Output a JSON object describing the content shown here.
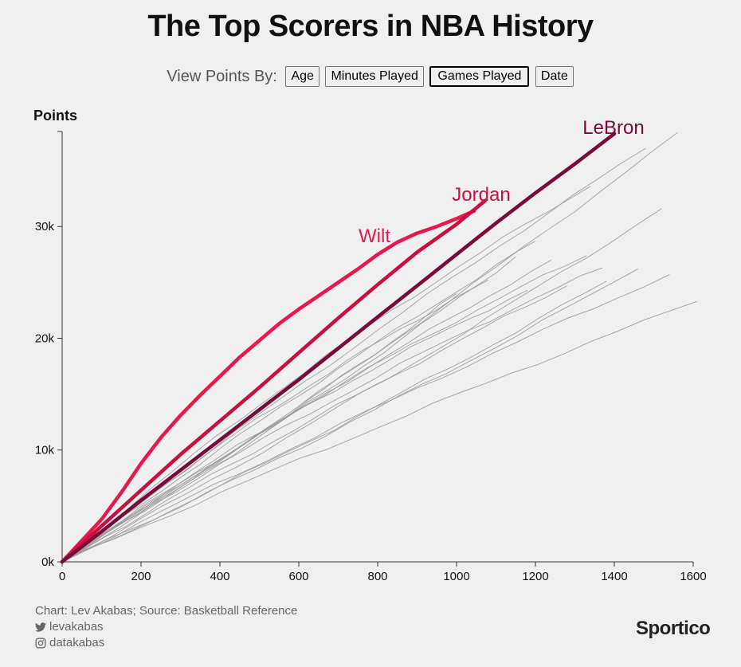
{
  "title": "The Top Scorers in NBA History",
  "controls": {
    "label": "View Points By:",
    "buttons": [
      "Age",
      "Minutes Played",
      "Games Played",
      "Date"
    ],
    "active": "Games Played"
  },
  "footer": {
    "credit": "Chart: Lev Akabas; Source: Basketball Reference",
    "twitter": "levakabas",
    "instagram": "datakabas",
    "twitter_icon": "twitter-icon",
    "instagram_icon": "instagram-icon"
  },
  "brand": "Sportico",
  "colors": {
    "background": "#f0f0f0",
    "lebron": "#7a0a3c",
    "jordan": "#c8103f",
    "wilt": "#e8174c",
    "others": "#9a9a9a"
  },
  "chart_data": {
    "type": "line",
    "ylabel": "Points",
    "xlabel": "",
    "xlim": [
      0,
      1600
    ],
    "ylim": [
      0,
      38500
    ],
    "xticks": [
      0,
      200,
      400,
      600,
      800,
      1000,
      1200,
      1400,
      1600
    ],
    "yticks": [
      0,
      10000,
      20000,
      30000
    ],
    "ytick_labels": [
      "0k",
      "10k",
      "20k",
      "30k"
    ],
    "series": [
      {
        "name": "LeBron",
        "highlight": true,
        "color": "#7a0a3c",
        "x": [
          0,
          100,
          200,
          300,
          400,
          500,
          600,
          700,
          800,
          900,
          1000,
          1100,
          1200,
          1300,
          1400
        ],
        "y": [
          0,
          2700,
          5500,
          8200,
          10900,
          13600,
          16300,
          19100,
          21900,
          24700,
          27500,
          30300,
          33000,
          35600,
          38300
        ]
      },
      {
        "name": "Jordan",
        "highlight": true,
        "color": "#c8103f",
        "x": [
          0,
          100,
          200,
          300,
          400,
          500,
          600,
          700,
          800,
          900,
          1000,
          1072
        ],
        "y": [
          0,
          3200,
          6400,
          9600,
          12600,
          15600,
          18700,
          21800,
          24800,
          27700,
          30200,
          32300
        ]
      },
      {
        "name": "Wilt",
        "highlight": true,
        "color": "#e8174c",
        "x": [
          0,
          100,
          150,
          200,
          250,
          300,
          350,
          400,
          450,
          500,
          550,
          600,
          650,
          700,
          750,
          800,
          850,
          900,
          950,
          1000,
          1045
        ],
        "y": [
          0,
          3800,
          6200,
          8800,
          11100,
          13100,
          14900,
          16600,
          18300,
          19800,
          21300,
          22600,
          23800,
          25000,
          26200,
          27500,
          28600,
          29400,
          30000,
          30700,
          31400
        ]
      },
      {
        "x": [
          0,
          1560
        ],
        "y": [
          0,
          38400
        ]
      },
      {
        "x": [
          0,
          1480
        ],
        "y": [
          0,
          37000
        ]
      },
      {
        "x": [
          0,
          1340
        ],
        "y": [
          0,
          33600
        ]
      },
      {
        "x": [
          0,
          1520
        ],
        "y": [
          0,
          31600
        ]
      },
      {
        "x": [
          0,
          1200
        ],
        "y": [
          0,
          28700
        ]
      },
      {
        "x": [
          0,
          1330
        ],
        "y": [
          0,
          27400
        ]
      },
      {
        "x": [
          0,
          1150
        ],
        "y": [
          0,
          27300
        ]
      },
      {
        "x": [
          0,
          1240
        ],
        "y": [
          0,
          27000
        ]
      },
      {
        "x": [
          0,
          1370
        ],
        "y": [
          0,
          26300
        ]
      },
      {
        "x": [
          0,
          1460
        ],
        "y": [
          0,
          26200
        ]
      },
      {
        "x": [
          0,
          1540
        ],
        "y": [
          0,
          25700
        ]
      },
      {
        "x": [
          0,
          1080
        ],
        "y": [
          0,
          25200
        ]
      },
      {
        "x": [
          0,
          1380
        ],
        "y": [
          0,
          25100
        ]
      },
      {
        "x": [
          0,
          1280
        ],
        "y": [
          0,
          24700
        ]
      },
      {
        "x": [
          0,
          1180
        ],
        "y": [
          0,
          24300
        ]
      },
      {
        "x": [
          0,
          1000
        ],
        "y": [
          0,
          24000
        ]
      },
      {
        "x": [
          0,
          1610
        ],
        "y": [
          0,
          23300
        ]
      }
    ]
  }
}
